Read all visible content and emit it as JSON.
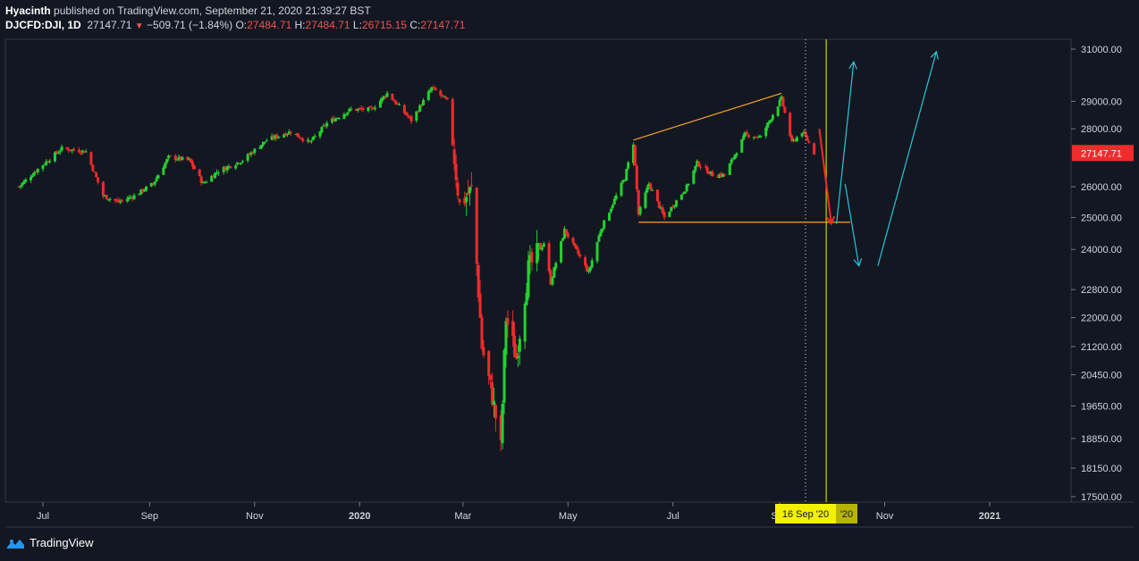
{
  "header": {
    "author": "Hyacinth",
    "published": " published on TradingView.com, September 21, 2020 21:39:27 BST",
    "symbol": "DJCFD:DJI, 1D",
    "last": "27147.71",
    "change": "−509.71 (−1.84%)",
    "o_label": "O:",
    "o_value": "27484.71",
    "h_label": "H:",
    "h_value": "27484.71",
    "l_label": "L:",
    "l_value": "26715.15",
    "c_label": "C:",
    "c_value": "27147.71"
  },
  "footer": {
    "brand": "TradingView"
  },
  "colors": {
    "up": "#26a69a",
    "up_bright": "#22d12f",
    "down": "#ef2b2b",
    "orange": "#f5a623",
    "cyan": "#26c6da",
    "bg": "#131722",
    "yellow": "#f1f100"
  },
  "chart_data": {
    "type": "candlestick",
    "y_axis": {
      "ticks": [
        31000,
        29000,
        28000,
        26000,
        25000,
        24000,
        22800,
        22000,
        21200,
        20450,
        19650,
        18850,
        18150,
        17500
      ],
      "tick_labels": [
        "31000.00",
        "29000.00",
        "28000.00",
        "26000.00",
        "25000.00",
        "24000.00",
        "22800.00",
        "22000.00",
        "21200.00",
        "20450.00",
        "19650.00",
        "18850.00",
        "18150.00",
        "17500.00"
      ],
      "scale": "log"
    },
    "x_axis": {
      "ticks": [
        "2019-07-01",
        "2019-09-01",
        "2019-11-01",
        "2020-01-01",
        "2020-03-01",
        "2020-05-01",
        "2020-07-01",
        "2020-09-01",
        "2020-11-01",
        "2021-01-01"
      ],
      "tick_labels": [
        "Jul",
        "Sep",
        "Nov",
        "2020",
        "Mar",
        "May",
        "Jul",
        "Sep",
        "Nov",
        "2021"
      ]
    },
    "price_label": "27147.71",
    "crosshair_date_label": "16 Sep '20",
    "crosshair_date": "2020-09-16",
    "cursor_date": "2020-09-28",
    "cursor_label": "'20",
    "path": [
      [
        "2019-06-17",
        26000
      ],
      [
        "2019-06-28",
        26600
      ],
      [
        "2019-07-12",
        27300
      ],
      [
        "2019-07-26",
        27200
      ],
      [
        "2019-08-05",
        25700
      ],
      [
        "2019-08-14",
        25500
      ],
      [
        "2019-08-23",
        25700
      ],
      [
        "2019-09-03",
        26100
      ],
      [
        "2019-09-12",
        27000
      ],
      [
        "2019-09-24",
        26900
      ],
      [
        "2019-10-02",
        26100
      ],
      [
        "2019-10-10",
        26500
      ],
      [
        "2019-10-25",
        26900
      ],
      [
        "2019-11-08",
        27600
      ],
      [
        "2019-11-22",
        27900
      ],
      [
        "2019-12-03",
        27500
      ],
      [
        "2019-12-13",
        28200
      ],
      [
        "2019-12-27",
        28700
      ],
      [
        "2020-01-08",
        28700
      ],
      [
        "2020-01-17",
        29300
      ],
      [
        "2020-01-31",
        28300
      ],
      [
        "2020-02-12",
        29500
      ],
      [
        "2020-02-21",
        29000
      ],
      [
        "2020-02-28",
        25400
      ],
      [
        "2020-03-06",
        25900
      ],
      [
        "2020-03-12",
        21200
      ],
      [
        "2020-03-18",
        19900
      ],
      [
        "2020-03-23",
        18600
      ],
      [
        "2020-03-26",
        22000
      ],
      [
        "2020-04-01",
        20900
      ],
      [
        "2020-04-08",
        23400
      ],
      [
        "2020-04-17",
        24200
      ],
      [
        "2020-04-21",
        23000
      ],
      [
        "2020-04-29",
        24600
      ],
      [
        "2020-05-13",
        23300
      ],
      [
        "2020-05-20",
        24600
      ],
      [
        "2020-06-03",
        26300
      ],
      [
        "2020-06-08",
        27500
      ],
      [
        "2020-06-11",
        25100
      ],
      [
        "2020-06-17",
        26100
      ],
      [
        "2020-06-26",
        25000
      ],
      [
        "2020-07-09",
        26000
      ],
      [
        "2020-07-15",
        26800
      ],
      [
        "2020-07-24",
        26400
      ],
      [
        "2020-07-31",
        26400
      ],
      [
        "2020-08-12",
        27800
      ],
      [
        "2020-08-21",
        27700
      ],
      [
        "2020-09-02",
        29100
      ],
      [
        "2020-09-08",
        27500
      ],
      [
        "2020-09-14",
        27900
      ],
      [
        "2020-09-18",
        27500
      ],
      [
        "2020-09-21",
        27147.71
      ]
    ],
    "annotations": {
      "orange_channel": [
        [
          [
            "2020-06-08",
            27600
          ],
          [
            "2020-09-02",
            29300
          ]
        ],
        [
          [
            "2020-06-11",
            24850
          ],
          [
            "2020-10-12",
            24850
          ]
        ]
      ],
      "red_arrow": [
        [
          "2020-09-24",
          28000
        ],
        [
          "2020-10-01",
          24800
        ]
      ],
      "cyan_arrows": [
        [
          [
            "2020-10-04",
            24800
          ],
          [
            "2020-10-14",
            30500
          ]
        ],
        [
          [
            "2020-10-09",
            26100
          ],
          [
            "2020-10-17",
            23500
          ]
        ],
        [
          [
            "2020-10-28",
            23500
          ],
          [
            "2020-12-01",
            30900
          ]
        ]
      ]
    }
  }
}
